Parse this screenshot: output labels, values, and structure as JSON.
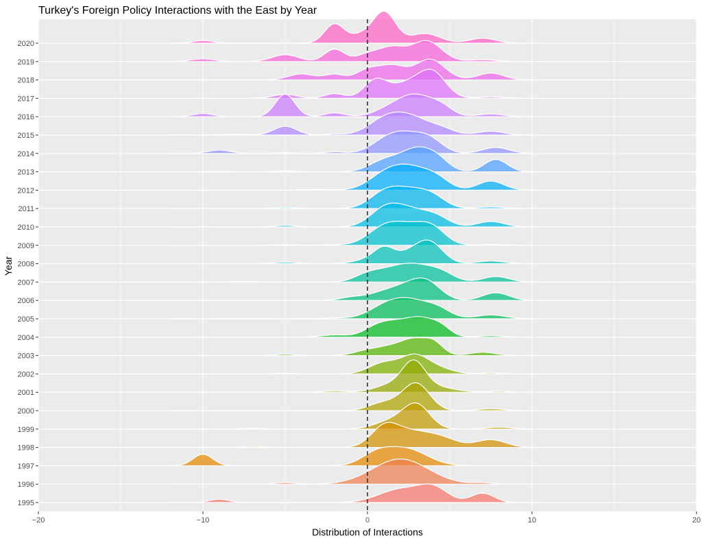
{
  "chart_data": {
    "type": "ridgeline",
    "title": "Turkey's Foreign Policy Interactions with the East by Year",
    "xlabel": "Distribution of Interactions",
    "ylabel": "Year",
    "xlim": [
      -20,
      20
    ],
    "xticks": [
      -20,
      -10,
      0,
      10,
      20
    ],
    "reference_line_x": 0,
    "grid": true,
    "series": [
      {
        "name": "1995",
        "color": "#F8766D",
        "peaks": [
          [
            -9,
            0.12,
            0.6
          ],
          [
            2,
            0.48,
            1.3
          ],
          [
            4,
            0.5,
            0.9
          ],
          [
            7,
            0.34,
            0.7
          ]
        ]
      },
      {
        "name": "1996",
        "color": "#EE7F51",
        "peaks": [
          [
            -5,
            0.06,
            0.6
          ],
          [
            2,
            0.92,
            1.7
          ],
          [
            7,
            0.05,
            0.6
          ]
        ]
      },
      {
        "name": "1997",
        "color": "#E38900",
        "peaks": [
          [
            -10,
            0.42,
            0.6
          ],
          [
            0.5,
            0.35,
            0.9
          ],
          [
            2.3,
            0.62,
            1.3
          ]
        ]
      },
      {
        "name": "1998",
        "color": "#D39200",
        "peaks": [
          [
            -7,
            0.04,
            0.6
          ],
          [
            1,
            0.62,
            0.8
          ],
          [
            2.5,
            0.55,
            1.2
          ],
          [
            4.5,
            0.3,
            1
          ],
          [
            7.5,
            0.28,
            0.9
          ]
        ]
      },
      {
        "name": "1999",
        "color": "#C19A00",
        "peaks": [
          [
            -7,
            0.03,
            0.6
          ],
          [
            1.5,
            0.3,
            1
          ],
          [
            3,
            0.85,
            0.8
          ],
          [
            8,
            0.07,
            0.8
          ]
        ]
      },
      {
        "name": "2000",
        "color": "#ADA200",
        "peaks": [
          [
            0.5,
            0.12,
            0.7
          ],
          [
            3,
            0.95,
            0.8
          ],
          [
            1.5,
            0.25,
            0.9
          ],
          [
            7.5,
            0.07,
            0.8
          ]
        ]
      },
      {
        "name": "2001",
        "color": "#96A800",
        "peaks": [
          [
            -2,
            0.05,
            0.8
          ],
          [
            1.3,
            0.25,
            0.9
          ],
          [
            2.8,
            1.0,
            0.7
          ],
          [
            4,
            0.2,
            1.2
          ],
          [
            8,
            0.04,
            0.6
          ]
        ]
      },
      {
        "name": "2002",
        "color": "#7BAE00",
        "peaks": [
          [
            -5,
            0.02,
            0.6
          ],
          [
            1,
            0.4,
            0.9
          ],
          [
            2.8,
            0.55,
            0.8
          ],
          [
            4,
            0.25,
            1
          ],
          [
            7.5,
            0.04,
            0.6
          ]
        ]
      },
      {
        "name": "2003",
        "color": "#53B400",
        "peaks": [
          [
            -5,
            0.05,
            0.6
          ],
          [
            0,
            0.18,
            0.8
          ],
          [
            1.5,
            0.3,
            0.8
          ],
          [
            2.8,
            0.5,
            0.7
          ],
          [
            4,
            0.47,
            0.6
          ],
          [
            7,
            0.12,
            0.8
          ]
        ]
      },
      {
        "name": "2004",
        "color": "#00B81F",
        "peaks": [
          [
            -2,
            0.08,
            0.8
          ],
          [
            0.5,
            0.3,
            0.8
          ],
          [
            1.7,
            0.42,
            0.9
          ],
          [
            3.3,
            0.62,
            0.9
          ],
          [
            4.5,
            0.25,
            0.6
          ],
          [
            7.5,
            0.05,
            0.8
          ]
        ]
      },
      {
        "name": "2005",
        "color": "#00BC56",
        "peaks": [
          [
            -2,
            0.03,
            0.8
          ],
          [
            1,
            0.38,
            1
          ],
          [
            2.6,
            0.62,
            1.1
          ],
          [
            4.3,
            0.3,
            0.8
          ],
          [
            7.5,
            0.14,
            0.9
          ]
        ]
      },
      {
        "name": "2006",
        "color": "#00BF7D",
        "peaks": [
          [
            -1,
            0.1,
            0.7
          ],
          [
            1,
            0.28,
            1
          ],
          [
            2.8,
            0.55,
            1
          ],
          [
            3.8,
            0.38,
            0.8
          ],
          [
            7.8,
            0.28,
            0.8
          ]
        ]
      },
      {
        "name": "2007",
        "color": "#00C19C",
        "peaks": [
          [
            -7.5,
            0.02,
            0.6
          ],
          [
            0,
            0.25,
            0.8
          ],
          [
            1.5,
            0.38,
            1
          ],
          [
            3,
            0.5,
            1
          ],
          [
            4.5,
            0.3,
            0.8
          ],
          [
            7.8,
            0.2,
            0.8
          ]
        ]
      },
      {
        "name": "2008",
        "color": "#00C1B7",
        "peaks": [
          [
            -5,
            0.05,
            0.8
          ],
          [
            0,
            0.15,
            0.8
          ],
          [
            1,
            0.48,
            0.6
          ],
          [
            2.5,
            0.35,
            0.9
          ],
          [
            3.8,
            0.72,
            0.8
          ],
          [
            7.5,
            0.1,
            0.8
          ]
        ]
      },
      {
        "name": "2009",
        "color": "#00BFCF",
        "peaks": [
          [
            -5,
            0.02,
            0.6
          ],
          [
            -2,
            0.02,
            0.6
          ],
          [
            1,
            0.6,
            1
          ],
          [
            2.7,
            0.6,
            1.1
          ],
          [
            4,
            0.45,
            0.8
          ],
          [
            7.5,
            0.03,
            0.8
          ]
        ]
      },
      {
        "name": "2010",
        "color": "#00BBE2",
        "peaks": [
          [
            -5,
            0.06,
            0.6
          ],
          [
            1,
            0.55,
            0.9
          ],
          [
            2.5,
            0.6,
            1.1
          ],
          [
            4.2,
            0.3,
            0.8
          ],
          [
            7.5,
            0.2,
            0.8
          ]
        ]
      },
      {
        "name": "2011",
        "color": "#00B4F0",
        "peaks": [
          [
            -5,
            0.04,
            0.6
          ],
          [
            1,
            0.5,
            0.9
          ],
          [
            2.6,
            0.62,
            1.1
          ],
          [
            4,
            0.3,
            0.8
          ],
          [
            7.5,
            0.06,
            0.8
          ]
        ]
      },
      {
        "name": "2012",
        "color": "#00ACFC",
        "peaks": [
          [
            -3,
            0.03,
            0.8
          ],
          [
            1,
            0.48,
            1
          ],
          [
            2.6,
            0.75,
            1.1
          ],
          [
            4.2,
            0.35,
            0.8
          ],
          [
            7.5,
            0.33,
            0.8
          ]
        ]
      },
      {
        "name": "2013",
        "color": "#4FA1FF",
        "peaks": [
          [
            -9,
            0.02,
            0.6
          ],
          [
            -5,
            0.03,
            0.6
          ],
          [
            1,
            0.38,
            0.9
          ],
          [
            3,
            0.82,
            1
          ],
          [
            4.3,
            0.3,
            0.7
          ],
          [
            7.8,
            0.45,
            0.7
          ]
        ]
      },
      {
        "name": "2014",
        "color": "#8F94FF",
        "peaks": [
          [
            -9,
            0.12,
            0.7
          ],
          [
            -5,
            0.03,
            0.6
          ],
          [
            -2,
            0.06,
            0.6
          ],
          [
            1,
            0.35,
            0.9
          ],
          [
            2.3,
            0.62,
            1
          ],
          [
            3.8,
            0.45,
            0.8
          ],
          [
            7.8,
            0.22,
            0.8
          ]
        ]
      },
      {
        "name": "2015",
        "color": "#B287FF",
        "peaks": [
          [
            -8,
            0.03,
            0.8
          ],
          [
            -5,
            0.32,
            0.7
          ],
          [
            -2,
            0.04,
            0.6
          ],
          [
            1,
            0.5,
            1
          ],
          [
            2.6,
            0.62,
            1.1
          ],
          [
            4.5,
            0.2,
            0.8
          ],
          [
            7.5,
            0.14,
            0.8
          ]
        ]
      },
      {
        "name": "2016",
        "color": "#CB7BFF",
        "peaks": [
          [
            -10,
            0.12,
            0.6
          ],
          [
            -5,
            0.82,
            0.6
          ],
          [
            -2,
            0.14,
            0.6
          ],
          [
            1.5,
            0.3,
            1
          ],
          [
            3,
            0.7,
            1
          ],
          [
            4.5,
            0.3,
            0.7
          ],
          [
            7.5,
            0.1,
            0.8
          ]
        ]
      },
      {
        "name": "2017",
        "color": "#DF70F8",
        "peaks": [
          [
            -5,
            0.15,
            0.7
          ],
          [
            -2,
            0.17,
            0.6
          ],
          [
            0.5,
            0.65,
            0.7
          ],
          [
            2.5,
            0.55,
            1
          ],
          [
            4,
            0.85,
            0.8
          ],
          [
            7.5,
            0.05,
            0.8
          ]
        ]
      },
      {
        "name": "2018",
        "color": "#EE67EB",
        "peaks": [
          [
            -4,
            0.22,
            0.8
          ],
          [
            -2,
            0.2,
            0.6
          ],
          [
            0,
            0.35,
            0.7
          ],
          [
            1.5,
            0.5,
            0.8
          ],
          [
            3.8,
            0.75,
            0.9
          ],
          [
            7.5,
            0.25,
            0.8
          ]
        ]
      },
      {
        "name": "2019",
        "color": "#F863DA",
        "peaks": [
          [
            -10,
            0.1,
            0.7
          ],
          [
            -5,
            0.25,
            0.8
          ],
          [
            -2,
            0.45,
            0.6
          ],
          [
            0,
            0.25,
            0.7
          ],
          [
            1.5,
            0.5,
            0.8
          ],
          [
            3.6,
            0.75,
            0.9
          ],
          [
            7,
            0.07,
            0.8
          ]
        ]
      },
      {
        "name": "2020",
        "color": "#FD61C5",
        "peaks": [
          [
            -10,
            0.1,
            0.6
          ],
          [
            -2,
            0.7,
            0.6
          ],
          [
            -0.5,
            0.25,
            0.6
          ],
          [
            1,
            1.15,
            0.7
          ],
          [
            3.5,
            0.35,
            0.9
          ],
          [
            7,
            0.18,
            0.8
          ]
        ]
      }
    ]
  }
}
